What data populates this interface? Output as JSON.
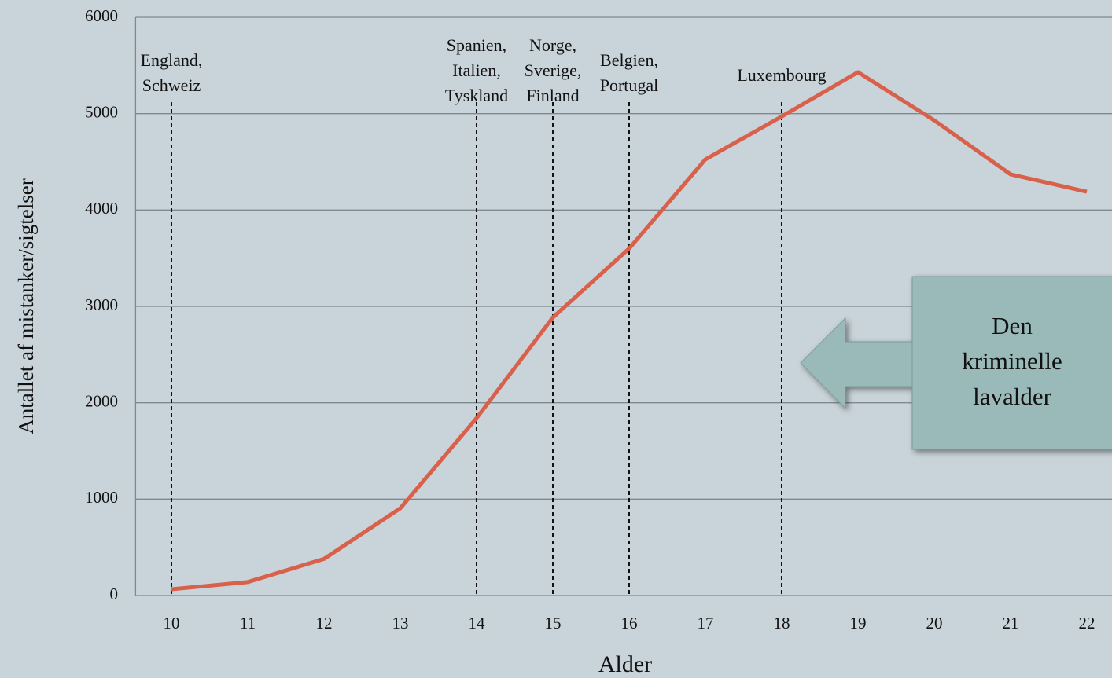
{
  "chart_data": {
    "type": "line",
    "x_label": "Alder",
    "y_label": "Antallet af mistanker/sigtelser",
    "x": [
      10,
      11,
      12,
      13,
      14,
      15,
      16,
      17,
      18,
      19,
      20,
      21,
      22
    ],
    "values": [
      65,
      140,
      380,
      905,
      1840,
      2885,
      3600,
      4525,
      4970,
      5430,
      4930,
      4370,
      4190
    ],
    "color": "#d9604a",
    "xlim": [
      9.53,
      22.33
    ],
    "xticks": [
      10,
      11,
      12,
      13,
      14,
      15,
      16,
      17,
      18,
      19,
      20,
      21,
      22
    ],
    "ylim": [
      0,
      6000
    ],
    "yticks": [
      0,
      1000,
      2000,
      3000,
      4000,
      5000,
      6000
    ],
    "grid": true,
    "annotations": [
      {
        "x": 10,
        "label": [
          "England,",
          "Schweiz"
        ]
      },
      {
        "x": 14,
        "label": [
          "Spanien,",
          "Italien,",
          "Tyskland"
        ]
      },
      {
        "x": 15,
        "label": [
          "Norge,",
          "Sverige,",
          "Finland"
        ]
      },
      {
        "x": 16,
        "label": [
          "Belgien,",
          "Portugal"
        ]
      },
      {
        "x": 18,
        "label": [
          "Luxembourg"
        ]
      }
    ],
    "callout": [
      "Den",
      "kriminelle",
      "lavalder"
    ]
  }
}
